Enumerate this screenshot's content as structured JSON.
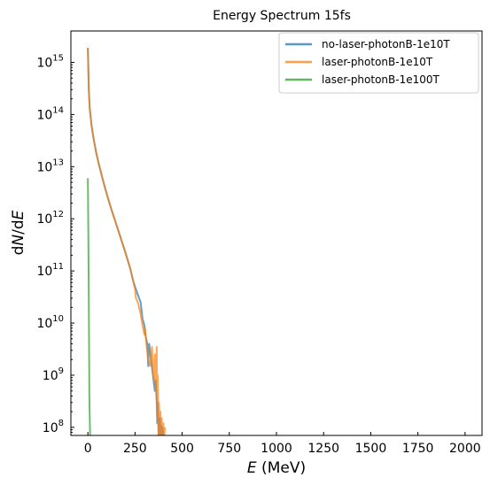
{
  "chart_data": {
    "type": "line",
    "title": "Energy Spectrum 15fs",
    "xlabel": "E (MeV)",
    "ylabel": "dN/dE",
    "xlim": [
      -90,
      2090
    ],
    "ylim": [
      70000000,
      4000000000000000.0
    ],
    "yscale": "log",
    "x_ticks": [
      0,
      250,
      500,
      750,
      1000,
      1250,
      1500,
      1750,
      2000
    ],
    "x_tick_labels": [
      "0",
      "250",
      "500",
      "750",
      "1000",
      "1250",
      "1500",
      "1750",
      "2000"
    ],
    "y_tick_exponents": [
      8,
      9,
      10,
      11,
      12,
      13,
      14,
      15
    ],
    "legend_position": "top-right",
    "grid": false,
    "series": [
      {
        "name": "no-laser-photonB-1e10T",
        "color": "#1f77b4",
        "x": [
          0,
          5,
          10,
          20,
          30,
          45,
          60,
          80,
          100,
          125,
          150,
          175,
          200,
          225,
          240,
          250,
          265,
          280,
          290,
          300,
          305,
          315,
          320,
          325,
          335,
          345,
          350,
          355,
          360,
          365,
          368,
          370,
          373,
          375,
          377,
          380,
          382,
          385,
          388,
          392,
          396,
          400
        ],
        "y": [
          1900000000000000.0,
          300000000000000.0,
          130000000000000.0,
          60000000000000.0,
          35000000000000.0,
          18000000000000.0,
          10500000000000.0,
          5500000000000.0,
          3000000000000.0,
          1500000000000.0,
          800000000000.0,
          420000000000.0,
          220000000000.0,
          110000000000.0,
          65000000000.0,
          50000000000.0,
          35000000000.0,
          25000000000.0,
          12000000000.0,
          9000000000.0,
          6000000000.0,
          4000000000.0,
          1500000000.0,
          4000000000.0,
          2000000000.0,
          1000000000.0,
          700000000.0,
          500000000.0,
          800000000.0,
          300000000.0,
          120000000.0,
          300000000.0,
          150000000.0,
          70000000.0,
          120000000.0,
          70000000.0,
          150000000.0,
          70000000.0,
          110000000.0,
          70000000.0,
          100000000.0,
          70000000.0
        ]
      },
      {
        "name": "laser-photonB-1e10T",
        "color": "#ff7f0e",
        "x": [
          0,
          5,
          10,
          20,
          30,
          45,
          60,
          80,
          100,
          125,
          150,
          175,
          200,
          225,
          240,
          250,
          255,
          265,
          280,
          290,
          300,
          303,
          310,
          320,
          330,
          340,
          345,
          350,
          355,
          360,
          365,
          368,
          370,
          373,
          375,
          377,
          380,
          382,
          385,
          388,
          392,
          396,
          400,
          405,
          410
        ],
        "y": [
          1900000000000000.0,
          300000000000000.0,
          130000000000000.0,
          60000000000000.0,
          35000000000000.0,
          18000000000000.0,
          10500000000000.0,
          5500000000000.0,
          3000000000000.0,
          1500000000000.0,
          800000000000.0,
          420000000000.0,
          220000000000.0,
          110000000000.0,
          65000000000.0,
          45000000000.0,
          30000000000.0,
          25000000000.0,
          15000000000.0,
          9000000000.0,
          6000000000.0,
          8000000000.0,
          4000000000.0,
          2000000000.0,
          1500000000.0,
          3500000000.0,
          1500000000.0,
          800000000.0,
          2500000000.0,
          500000000.0,
          3500000000.0,
          150000000.0,
          1000000000.0,
          300000000.0,
          70000000.0,
          300000000.0,
          150000000.0,
          70000000.0,
          200000000.0,
          70000000.0,
          150000000.0,
          70000000.0,
          120000000.0,
          70000000.0,
          100000000.0
        ]
      },
      {
        "name": "laser-photonB-1e100T",
        "color": "#2ca02c",
        "x": [
          0,
          2,
          4,
          6,
          8,
          10,
          12
        ],
        "y": [
          6000000000000.0,
          800000000000.0,
          100000000000.0,
          8000000000.0,
          400000000.0,
          150000000.0,
          70000000.0
        ]
      }
    ]
  }
}
